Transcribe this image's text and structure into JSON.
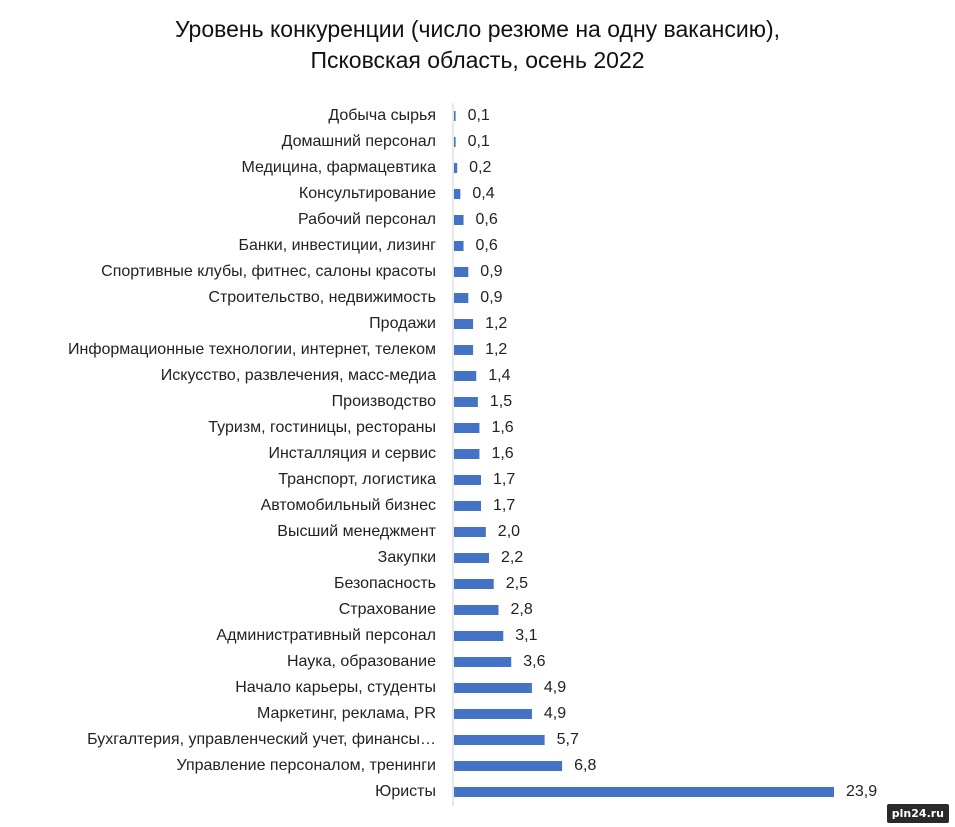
{
  "chart_data": {
    "type": "bar",
    "orientation": "horizontal",
    "title": [
      "Уровень конкуренции (число резюме на одну вакансию),",
      "Псковская область, осень 2022"
    ],
    "xlabel": "",
    "ylabel": "",
    "xlim": [
      0,
      23.9
    ],
    "grid": false,
    "legend": "none",
    "bar_color": "#4472C4",
    "categories": [
      "Добыча сырья",
      "Домашний персонал",
      "Медицина, фармацевтика",
      "Консультирование",
      "Рабочий персонал",
      "Банки, инвестиции, лизинг",
      "Спортивные клубы, фитнес, салоны красоты",
      "Строительство, недвижимость",
      "Продажи",
      "Информационные технологии, интернет, телеком",
      "Искусство, развлечения, масс-медиа",
      "Производство",
      "Туризм, гостиницы, рестораны",
      "Инсталляция и сервис",
      "Транспорт, логистика",
      "Автомобильный бизнес",
      "Высший менеджмент",
      "Закупки",
      "Безопасность",
      "Страхование",
      "Административный персонал",
      "Наука, образование",
      "Начало карьеры, студенты",
      "Маркетинг, реклама, PR",
      "Бухгалтерия, управленческий учет, финансы…",
      "Управление персоналом, тренинги",
      "Юристы"
    ],
    "values": [
      0.1,
      0.1,
      0.2,
      0.4,
      0.6,
      0.6,
      0.9,
      0.9,
      1.2,
      1.2,
      1.4,
      1.5,
      1.6,
      1.6,
      1.7,
      1.7,
      2.0,
      2.2,
      2.5,
      2.8,
      3.1,
      3.6,
      4.9,
      4.9,
      5.7,
      6.8,
      23.9
    ],
    "value_labels": [
      "0,1",
      "0,1",
      "0,2",
      "0,4",
      "0,6",
      "0,6",
      "0,9",
      "0,9",
      "1,2",
      "1,2",
      "1,4",
      "1,5",
      "1,6",
      "1,6",
      "1,7",
      "1,7",
      "2,0",
      "2,2",
      "2,5",
      "2,8",
      "3,1",
      "3,6",
      "4,9",
      "4,9",
      "5,7",
      "6,8",
      "23,9"
    ]
  },
  "watermark": "pln24.ru"
}
